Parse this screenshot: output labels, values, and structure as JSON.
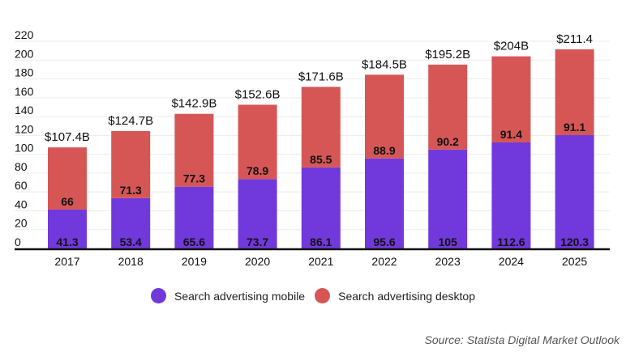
{
  "chart_data": {
    "type": "bar",
    "stacked": true,
    "title": "",
    "xlabel": "",
    "ylabel": "",
    "ylim": [
      0,
      220
    ],
    "yticks": [
      0,
      20,
      40,
      60,
      80,
      100,
      120,
      140,
      160,
      180,
      200,
      220
    ],
    "grid": true,
    "legend_position": "bottom-center",
    "categories": [
      "2017",
      "2018",
      "2019",
      "2020",
      "2021",
      "2022",
      "2023",
      "2024",
      "2025"
    ],
    "series": [
      {
        "name": "Search advertising mobile",
        "color": "#7139dc",
        "values": [
          41.3,
          53.4,
          65.6,
          73.7,
          86.1,
          95.6,
          105,
          112.6,
          120.3
        ],
        "labels": [
          "41.3",
          "53.4",
          "65.6",
          "73.7",
          "86.1",
          "95.6",
          "105",
          "112.6",
          "120.3"
        ]
      },
      {
        "name": "Search advertising desktop",
        "color": "#d65656",
        "values": [
          66,
          71.3,
          77.3,
          78.9,
          85.5,
          88.9,
          90.2,
          91.4,
          91.1
        ],
        "labels": [
          "66",
          "71.3",
          "77.3",
          "78.9",
          "85.5",
          "88.9",
          "90.2",
          "91.4",
          "91.1"
        ]
      }
    ],
    "totals": [
      107.4,
      124.7,
      142.9,
      152.6,
      171.6,
      184.5,
      195.2,
      204,
      211.4
    ],
    "total_labels": [
      "$107.4B",
      "$124.7B",
      "$142.9B",
      "$152.6B",
      "$171.6B",
      "$184.5B",
      "$195.2B",
      "$204B",
      "$211.4"
    ]
  },
  "legend": {
    "items": [
      {
        "label": "Search advertising mobile",
        "color": "#7139dc"
      },
      {
        "label": "Search advertising desktop",
        "color": "#d65656"
      }
    ]
  },
  "source": "Source: Statista Digital Market Outlook"
}
